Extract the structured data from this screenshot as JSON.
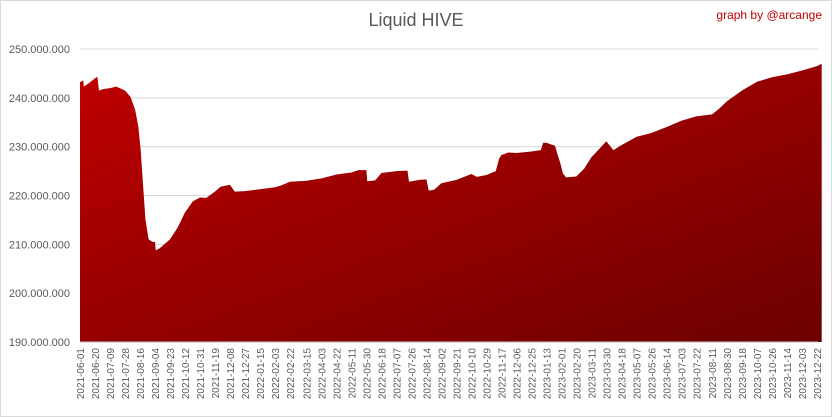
{
  "chart_data": {
    "type": "area",
    "title": "Liquid HIVE",
    "credit": "graph by @arcange",
    "xlabel": "",
    "ylabel": "",
    "ylim": [
      190000000,
      250000000
    ],
    "yticks": [
      {
        "value": 190000000,
        "label": "190.000.000"
      },
      {
        "value": 200000000,
        "label": "200.000.000"
      },
      {
        "value": 210000000,
        "label": "210.000.000"
      },
      {
        "value": 220000000,
        "label": "220.000.000"
      },
      {
        "value": 230000000,
        "label": "230.000.000"
      },
      {
        "value": 240000000,
        "label": "240.000.000"
      },
      {
        "value": 250000000,
        "label": "250.000.000"
      }
    ],
    "xticks": [
      "2021-06-01",
      "2021-06-20",
      "2021-07-09",
      "2021-07-28",
      "2021-08-16",
      "2021-09-04",
      "2021-09-23",
      "2021-10-12",
      "2021-10-31",
      "2021-11-19",
      "2021-12-08",
      "2021-12-27",
      "2022-01-15",
      "2022-02-03",
      "2022-02-22",
      "2022-03-15",
      "2022-04-03",
      "2022-04-22",
      "2022-05-11",
      "2022-05-30",
      "2022-06-18",
      "2022-07-07",
      "2022-07-26",
      "2022-08-14",
      "2022-09-02",
      "2022-09-21",
      "2022-10-10",
      "2022-10-29",
      "2022-11-17",
      "2022-12-06",
      "2022-12-25",
      "2023-01-13",
      "2023-02-01",
      "2023-02-20",
      "2023-03-11",
      "2023-03-30",
      "2023-04-18",
      "2023-05-07",
      "2023-05-26",
      "2023-06-14",
      "2023-07-03",
      "2023-07-22",
      "2023-08-11",
      "2023-08-30",
      "2023-09-18",
      "2023-10-07",
      "2023-10-26",
      "2023-11-14",
      "2023-12-03",
      "2023-12-22"
    ],
    "series": [
      {
        "color_top": "#c00000",
        "color_bottom": "#6b0000",
        "points": [
          [
            "2021-06-01",
            243200000
          ],
          [
            "2021-06-05",
            243600000
          ],
          [
            "2021-06-06",
            242300000
          ],
          [
            "2021-06-12",
            243000000
          ],
          [
            "2021-06-20",
            244000000
          ],
          [
            "2021-06-23",
            244300000
          ],
          [
            "2021-06-25",
            241500000
          ],
          [
            "2021-07-01",
            241800000
          ],
          [
            "2021-07-09",
            242000000
          ],
          [
            "2021-07-17",
            242300000
          ],
          [
            "2021-07-28",
            241500000
          ],
          [
            "2021-08-04",
            240200000
          ],
          [
            "2021-08-10",
            237500000
          ],
          [
            "2021-08-14",
            234000000
          ],
          [
            "2021-08-17",
            229000000
          ],
          [
            "2021-08-20",
            222000000
          ],
          [
            "2021-08-23",
            215000000
          ],
          [
            "2021-08-27",
            211000000
          ],
          [
            "2021-09-01",
            210500000
          ],
          [
            "2021-09-04",
            210500000
          ],
          [
            "2021-09-05",
            208800000
          ],
          [
            "2021-09-10",
            209200000
          ],
          [
            "2021-09-23",
            211000000
          ],
          [
            "2021-10-03",
            213500000
          ],
          [
            "2021-10-12",
            216500000
          ],
          [
            "2021-10-22",
            218800000
          ],
          [
            "2021-10-31",
            219600000
          ],
          [
            "2021-11-08",
            219500000
          ],
          [
            "2021-11-19",
            220800000
          ],
          [
            "2021-11-26",
            221800000
          ],
          [
            "2021-12-08",
            222200000
          ],
          [
            "2021-12-14",
            220800000
          ],
          [
            "2021-12-27",
            220900000
          ],
          [
            "2022-01-15",
            221300000
          ],
          [
            "2022-02-03",
            221700000
          ],
          [
            "2022-02-10",
            222000000
          ],
          [
            "2022-02-22",
            222800000
          ],
          [
            "2022-03-15",
            223000000
          ],
          [
            "2022-04-03",
            223500000
          ],
          [
            "2022-04-22",
            224300000
          ],
          [
            "2022-05-11",
            224700000
          ],
          [
            "2022-05-20",
            225200000
          ],
          [
            "2022-05-30",
            225200000
          ],
          [
            "2022-05-31",
            222900000
          ],
          [
            "2022-06-10",
            223100000
          ],
          [
            "2022-06-18",
            224600000
          ],
          [
            "2022-07-07",
            225000000
          ],
          [
            "2022-07-21",
            225100000
          ],
          [
            "2022-07-23",
            222800000
          ],
          [
            "2022-08-05",
            223200000
          ],
          [
            "2022-08-14",
            223300000
          ],
          [
            "2022-08-17",
            221000000
          ],
          [
            "2022-08-24",
            221200000
          ],
          [
            "2022-09-02",
            222500000
          ],
          [
            "2022-09-21",
            223200000
          ],
          [
            "2022-10-10",
            224400000
          ],
          [
            "2022-10-17",
            223800000
          ],
          [
            "2022-10-29",
            224200000
          ],
          [
            "2022-11-10",
            225000000
          ],
          [
            "2022-11-14",
            227500000
          ],
          [
            "2022-11-17",
            228300000
          ],
          [
            "2022-11-26",
            228800000
          ],
          [
            "2022-12-06",
            228700000
          ],
          [
            "2022-12-25",
            229000000
          ],
          [
            "2023-01-06",
            229300000
          ],
          [
            "2023-01-09",
            230800000
          ],
          [
            "2023-01-13",
            230800000
          ],
          [
            "2023-01-24",
            230200000
          ],
          [
            "2023-01-27",
            228500000
          ],
          [
            "2023-01-31",
            226500000
          ],
          [
            "2023-02-03",
            224500000
          ],
          [
            "2023-02-07",
            223700000
          ],
          [
            "2023-02-20",
            223900000
          ],
          [
            "2023-03-02",
            225500000
          ],
          [
            "2023-03-11",
            227800000
          ],
          [
            "2023-03-22",
            229700000
          ],
          [
            "2023-03-30",
            231100000
          ],
          [
            "2023-04-08",
            229300000
          ],
          [
            "2023-04-18",
            230300000
          ],
          [
            "2023-05-07",
            232000000
          ],
          [
            "2023-05-26",
            232800000
          ],
          [
            "2023-06-14",
            234000000
          ],
          [
            "2023-07-03",
            235300000
          ],
          [
            "2023-07-22",
            236200000
          ],
          [
            "2023-08-11",
            236600000
          ],
          [
            "2023-08-20",
            237800000
          ],
          [
            "2023-08-30",
            239300000
          ],
          [
            "2023-09-18",
            241500000
          ],
          [
            "2023-10-07",
            243300000
          ],
          [
            "2023-10-26",
            244200000
          ],
          [
            "2023-11-14",
            244800000
          ],
          [
            "2023-12-03",
            245600000
          ],
          [
            "2023-12-22",
            246500000
          ],
          [
            "2023-12-28",
            247000000
          ]
        ]
      }
    ],
    "grid": {
      "horizontal": true,
      "vertical": false
    },
    "legend": "none"
  }
}
